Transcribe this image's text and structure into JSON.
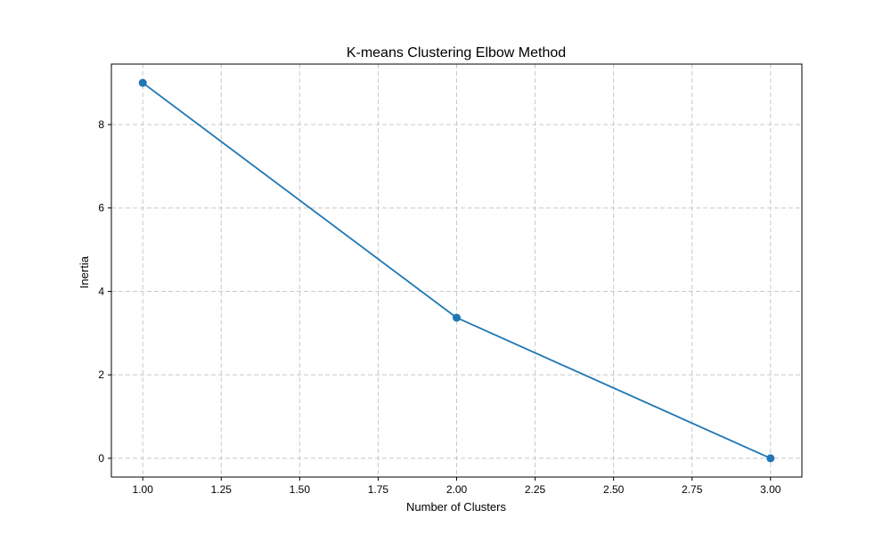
{
  "chart_data": {
    "type": "line",
    "title": "K-means Clustering Elbow Method",
    "xlabel": "Number of Clusters",
    "ylabel": "Inertia",
    "xlim": [
      0.9,
      3.1
    ],
    "ylim": [
      -0.45,
      9.45
    ],
    "xticks": [
      1.0,
      1.25,
      1.5,
      1.75,
      2.0,
      2.25,
      2.5,
      2.75,
      3.0
    ],
    "xtick_labels": [
      "1.00",
      "1.25",
      "1.50",
      "1.75",
      "2.00",
      "2.25",
      "2.50",
      "2.75",
      "3.00"
    ],
    "yticks": [
      0,
      2,
      4,
      6,
      8
    ],
    "ytick_labels": [
      "0",
      "2",
      "4",
      "6",
      "8"
    ],
    "grid": true,
    "series": [
      {
        "x": [
          1,
          2,
          3
        ],
        "y": [
          9.0,
          3.37,
          0.0
        ],
        "color": "#1f77b4",
        "marker": "circle"
      }
    ]
  }
}
